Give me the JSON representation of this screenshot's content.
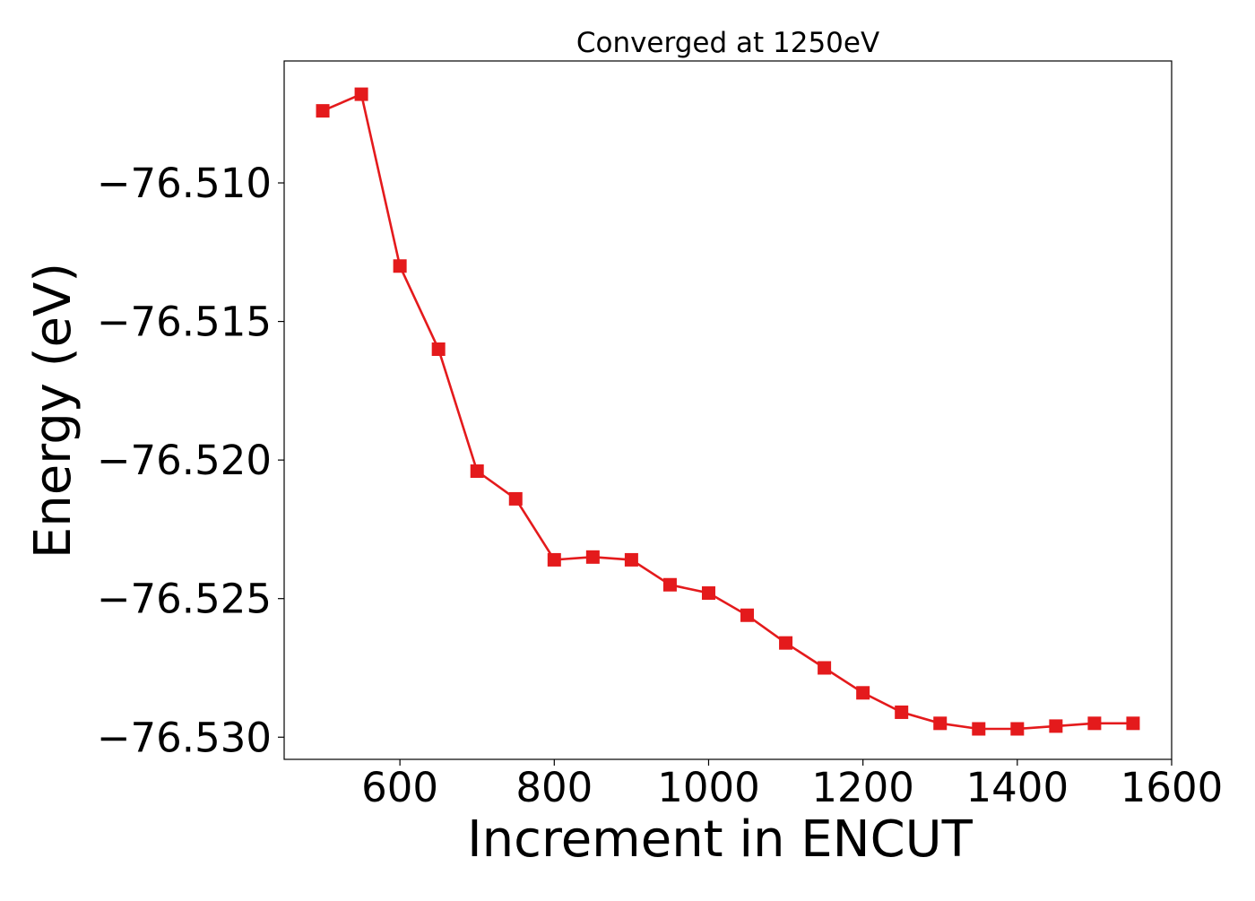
{
  "chart_data": {
    "type": "line",
    "title": "Converged at 1250eV",
    "xlabel": "Increment in ENCUT",
    "ylabel": "Energy (eV)",
    "xlim": [
      450,
      1600
    ],
    "ylim": [
      -76.5308,
      -76.5056
    ],
    "xticks": [
      600,
      800,
      1000,
      1200,
      1400,
      1600
    ],
    "xtick_labels": [
      "600",
      "800",
      "1000",
      "1200",
      "1400",
      "1600"
    ],
    "yticks": [
      -76.51,
      -76.515,
      -76.52,
      -76.525,
      -76.53
    ],
    "ytick_labels": [
      "−76.510",
      "−76.515",
      "−76.520",
      "−76.525",
      "−76.530"
    ],
    "grid": false,
    "color": "#e41a1c",
    "marker": "square",
    "series": [
      {
        "x": [
          500,
          550,
          600,
          650,
          700,
          750,
          800,
          850,
          900,
          950,
          1000,
          1050,
          1100,
          1150,
          1200,
          1250,
          1300,
          1350,
          1400,
          1450,
          1500,
          1550
        ],
        "y": [
          -76.5074,
          -76.5068,
          -76.513,
          -76.516,
          -76.5204,
          -76.5214,
          -76.5236,
          -76.5235,
          -76.5236,
          -76.5245,
          -76.5248,
          -76.5256,
          -76.5266,
          -76.5275,
          -76.5284,
          -76.5291,
          -76.5295,
          -76.5297,
          -76.5297,
          -76.5296,
          -76.5295,
          -76.5295
        ]
      }
    ]
  }
}
